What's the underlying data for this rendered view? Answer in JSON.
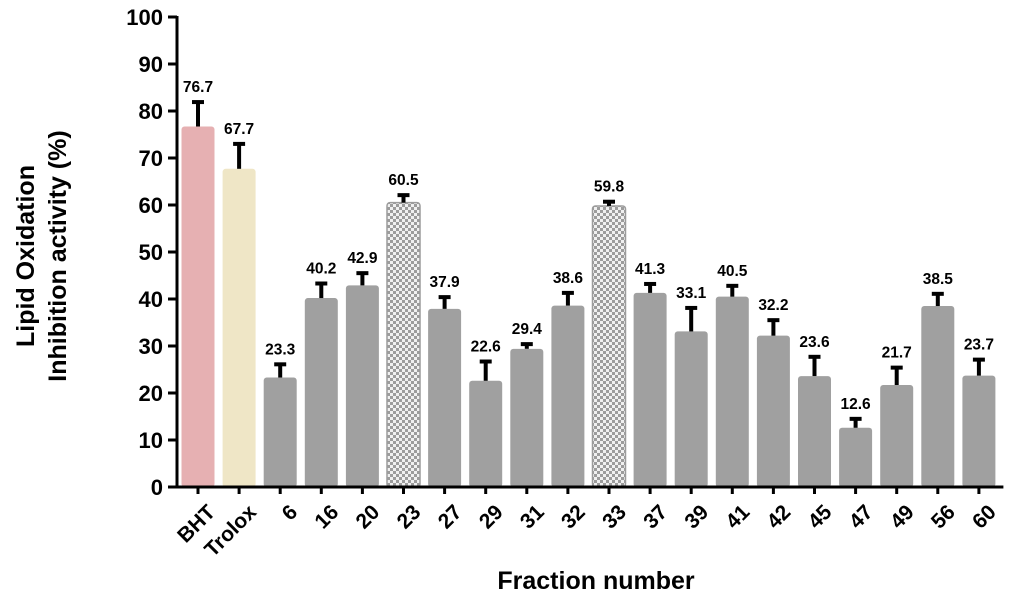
{
  "chart_data": {
    "type": "bar",
    "xlabel": "Fraction number",
    "ylabel_line1": "Lipid Oxidation",
    "ylabel_line2": "Inhibition activity (%)",
    "ylim": [
      0,
      100
    ],
    "yticks": [
      0,
      10,
      20,
      30,
      40,
      50,
      60,
      70,
      80,
      90,
      100
    ],
    "grid": false,
    "categories": [
      "BHT",
      "Trolox",
      "6",
      "16",
      "20",
      "23",
      "27",
      "29",
      "31",
      "32",
      "33",
      "37",
      "39",
      "41",
      "42",
      "45",
      "47",
      "49",
      "56",
      "60"
    ],
    "values": [
      76.7,
      67.7,
      23.3,
      40.2,
      42.9,
      60.5,
      37.9,
      22.6,
      29.4,
      38.6,
      59.8,
      41.3,
      33.1,
      40.5,
      32.2,
      23.6,
      12.6,
      21.7,
      38.5,
      23.7
    ],
    "value_labels": [
      "76.7",
      "67.7",
      "23.3",
      "40.2",
      "42.9",
      "60.5",
      "37.9",
      "22.6",
      "29.4",
      "38.6",
      "59.8",
      "41.3",
      "33.1",
      "40.5",
      "32.2",
      "23.6",
      "12.6",
      "21.7",
      "38.5",
      "23.7"
    ],
    "errors": [
      5.2,
      5.3,
      2.8,
      3.1,
      2.6,
      1.6,
      2.5,
      4.1,
      1.0,
      2.7,
      0.9,
      1.9,
      5.0,
      2.3,
      3.3,
      4.1,
      1.9,
      3.7,
      2.6,
      3.4
    ],
    "bar_styles": [
      "solid-pink",
      "solid-cream",
      "solid",
      "solid",
      "solid",
      "checker",
      "solid",
      "solid",
      "solid",
      "solid",
      "checker",
      "solid",
      "solid",
      "solid",
      "solid",
      "solid",
      "solid",
      "solid",
      "solid",
      "solid"
    ],
    "colors": {
      "default": "#a0a0a0",
      "pink": "#e6b0b2",
      "cream": "#efe6c6",
      "checker_light": "#f0f0f0",
      "checker_dark": "#9c9c9c",
      "axis": "#000000",
      "error": "#000000"
    }
  }
}
